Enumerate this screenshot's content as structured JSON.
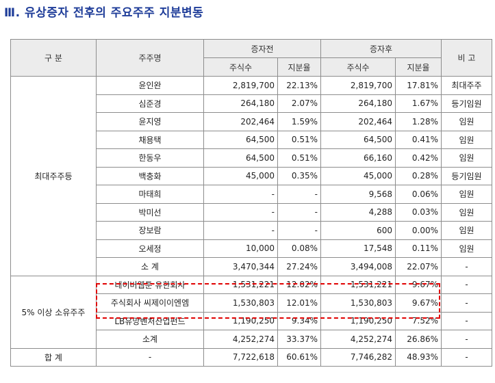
{
  "title": "Ⅲ. 유상증자 전후의 주요주주 지분변동",
  "header": {
    "category": "구 분",
    "holder": "주주명",
    "before": "증자전",
    "after": "증자후",
    "note": "비 고",
    "shares": "주식수",
    "ratio": "지분율"
  },
  "groups": {
    "largest": "최대주주등",
    "over5": "5% 이상 소유주주"
  },
  "largest_rows": [
    {
      "name": "윤인완",
      "b_shares": "2,819,700",
      "b_ratio": "22.13%",
      "a_shares": "2,819,700",
      "a_ratio": "17.81%",
      "note": "최대주주"
    },
    {
      "name": "심준경",
      "b_shares": "264,180",
      "b_ratio": "2.07%",
      "a_shares": "264,180",
      "a_ratio": "1.67%",
      "note": "등기임원"
    },
    {
      "name": "윤지영",
      "b_shares": "202,464",
      "b_ratio": "1.59%",
      "a_shares": "202,464",
      "a_ratio": "1.28%",
      "note": "임원"
    },
    {
      "name": "채용택",
      "b_shares": "64,500",
      "b_ratio": "0.51%",
      "a_shares": "64,500",
      "a_ratio": "0.41%",
      "note": "임원"
    },
    {
      "name": "한동우",
      "b_shares": "64,500",
      "b_ratio": "0.51%",
      "a_shares": "66,160",
      "a_ratio": "0.42%",
      "note": "임원"
    },
    {
      "name": "백충화",
      "b_shares": "45,000",
      "b_ratio": "0.35%",
      "a_shares": "45,000",
      "a_ratio": "0.28%",
      "note": "등기임원"
    },
    {
      "name": "마태희",
      "b_shares": "-",
      "b_ratio": "-",
      "a_shares": "9,568",
      "a_ratio": "0.06%",
      "note": "임원"
    },
    {
      "name": "박미선",
      "b_shares": "-",
      "b_ratio": "-",
      "a_shares": "4,288",
      "a_ratio": "0.03%",
      "note": "임원"
    },
    {
      "name": "장보람",
      "b_shares": "-",
      "b_ratio": "-",
      "a_shares": "600",
      "a_ratio": "0.00%",
      "note": "임원"
    },
    {
      "name": "오세정",
      "b_shares": "10,000",
      "b_ratio": "0.08%",
      "a_shares": "17,548",
      "a_ratio": "0.11%",
      "note": "임원"
    },
    {
      "name": "소 계",
      "b_shares": "3,470,344",
      "b_ratio": "27.24%",
      "a_shares": "3,494,008",
      "a_ratio": "22.07%",
      "note": "-"
    }
  ],
  "over5_rows": [
    {
      "name": "네이버웹툰 유한회사",
      "b_shares": "1,531,221",
      "b_ratio": "12.02%",
      "a_shares": "1,531,221",
      "a_ratio": "9.67%",
      "note": "-"
    },
    {
      "name": "주식회사 씨제이이엔엠",
      "b_shares": "1,530,803",
      "b_ratio": "12.01%",
      "a_shares": "1,530,803",
      "a_ratio": "9.67%",
      "note": "-"
    },
    {
      "name": "LB유망벤처산업펀드",
      "b_shares": "1,190,250",
      "b_ratio": "9.34%",
      "a_shares": "1,190,250",
      "a_ratio": "7.52%",
      "note": "-"
    },
    {
      "name": "소계",
      "b_shares": "4,252,274",
      "b_ratio": "33.37%",
      "a_shares": "4,252,274",
      "a_ratio": "26.86%",
      "note": "-"
    }
  ],
  "total": {
    "label": "합 계",
    "name": "-",
    "b_shares": "7,722,618",
    "b_ratio": "60.61%",
    "a_shares": "7,746,282",
    "a_ratio": "48.93%",
    "note": "-"
  }
}
